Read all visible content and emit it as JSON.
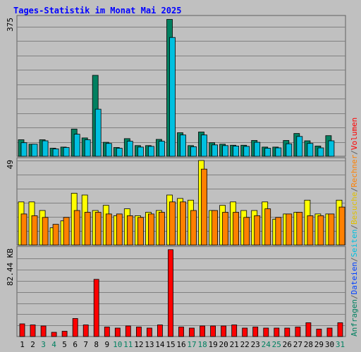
{
  "chart_data": {
    "type": "bar",
    "title": "Tages-Statistik im Monat Mai 2025",
    "x": [
      "1",
      "2",
      "3",
      "4",
      "5",
      "6",
      "7",
      "8",
      "9",
      "10",
      "11",
      "12",
      "13",
      "14",
      "15",
      "16",
      "17",
      "18",
      "19",
      "20",
      "21",
      "22",
      "23",
      "24",
      "25",
      "26",
      "27",
      "28",
      "29",
      "30",
      "31"
    ],
    "weekend_days": [
      "3",
      "4",
      "10",
      "11",
      "17",
      "18",
      "24",
      "25",
      "31"
    ],
    "panels": [
      {
        "id": "top",
        "axis_max_label": "375",
        "ymax": 375,
        "series": [
          {
            "name": "Anfragen",
            "color": "#008060",
            "values": [
              45,
              33,
              45,
              22,
              25,
              74,
              50,
              220,
              38,
              24,
              48,
              29,
              29,
              46,
              372,
              64,
              29,
              66,
              37,
              33,
              30,
              30,
              43,
              25,
              25,
              43,
              62,
              42,
              28,
              56,
              0
            ]
          },
          {
            "name": "Dateien",
            "color": "#00c0e0",
            "values": [
              37,
              33,
              42,
              20,
              24,
              60,
              45,
              128,
              35,
              22,
              41,
              25,
              27,
              41,
              323,
              58,
              26,
              58,
              31,
              29,
              28,
              27,
              38,
              22,
              23,
              34,
              54,
              35,
              23,
              42,
              0
            ]
          }
        ]
      },
      {
        "id": "middle",
        "axis_max_label": "49",
        "ymax": 49,
        "series": [
          {
            "name": "Seiten",
            "color": "#ffff00",
            "values": [
              25,
              25,
              20,
              10,
              14,
              30,
              29,
              20,
              23,
              17,
              21,
              17,
              19,
              20,
              29,
              27,
              26,
              49,
              20,
              23,
              25,
              20,
              20,
              25,
              15,
              18,
              19,
              26,
              18,
              18,
              26
            ]
          },
          {
            "name": "Besuche",
            "color": "#ff8000",
            "values": [
              18,
              17,
              16,
              12,
              16,
              20,
              19,
              19,
              18,
              18,
              17,
              16,
              18,
              19,
              25,
              25,
              20,
              44,
              20,
              19,
              19,
              16,
              17,
              21,
              16,
              18,
              19,
              17,
              17,
              18,
              22
            ]
          }
        ]
      },
      {
        "id": "bottom",
        "axis_max_label": "82.44 KB",
        "ymax": 82.44,
        "series": [
          {
            "name": "Volumen",
            "color": "#ff0000",
            "values": [
              12,
              11,
              10,
              4,
              5,
              17,
              11,
              54,
              9,
              8,
              10,
              9,
              8,
              11,
              82,
              9,
              8,
              10,
              10,
              10,
              11,
              8,
              9,
              8,
              8,
              8,
              9,
              13,
              7,
              8,
              13
            ]
          }
        ]
      }
    ],
    "right_axis_labels": [
      {
        "text": "Anfragen",
        "color": "#008060"
      },
      {
        "text": "/",
        "color": "#606060"
      },
      {
        "text": "Dateien",
        "color": "#0040ff"
      },
      {
        "text": "/",
        "color": "#606060"
      },
      {
        "text": "Seiten",
        "color": "#00c0e0"
      },
      {
        "text": "/",
        "color": "#606060"
      },
      {
        "text": "Besuche",
        "color": "#e0c000"
      },
      {
        "text": "/",
        "color": "#606060"
      },
      {
        "text": "Rechner",
        "color": "#ff8000"
      },
      {
        "text": "/",
        "color": "#606060"
      },
      {
        "text": "Volumen",
        "color": "#ff0000"
      }
    ],
    "grid": true,
    "day_label_color": "#000000",
    "weekend_label_color": "#008060"
  }
}
